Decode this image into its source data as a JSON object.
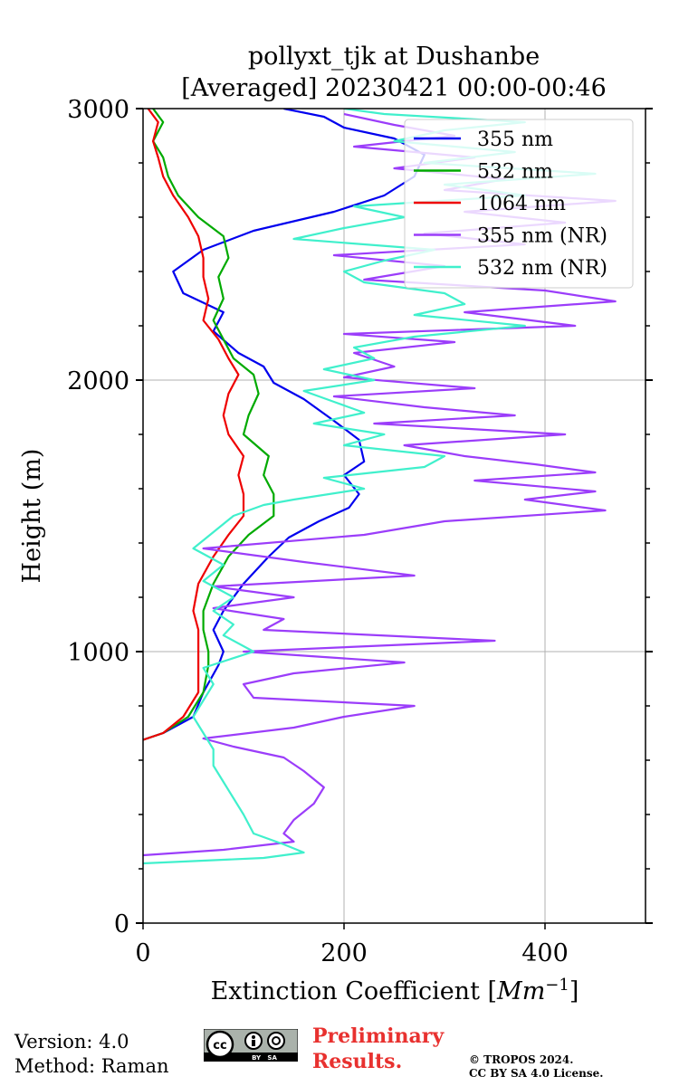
{
  "chart_data": {
    "type": "line",
    "title": "pollyxt_tjk at Dushanbe",
    "subtitle": "[Averaged] 20230421 00:00-00:46",
    "xlabel": "Extinction Coefficient [Mm⁻¹]",
    "ylabel": "Height (m)",
    "xlim": [
      0,
      500
    ],
    "ylim": [
      0,
      3000
    ],
    "xticks": [
      0,
      200,
      400
    ],
    "yticks": [
      0,
      1000,
      2000,
      3000
    ],
    "grid": true,
    "legend_position": "top-right",
    "series": [
      {
        "name": "355 nm",
        "color": "#0000ee",
        "points": [
          [
            0,
            675
          ],
          [
            20,
            700
          ],
          [
            50,
            760
          ],
          [
            60,
            850
          ],
          [
            75,
            950
          ],
          [
            80,
            1000
          ],
          [
            70,
            1080
          ],
          [
            80,
            1150
          ],
          [
            100,
            1250
          ],
          [
            125,
            1350
          ],
          [
            145,
            1420
          ],
          [
            175,
            1480
          ],
          [
            205,
            1530
          ],
          [
            215,
            1580
          ],
          [
            200,
            1650
          ],
          [
            220,
            1700
          ],
          [
            215,
            1780
          ],
          [
            190,
            1850
          ],
          [
            160,
            1930
          ],
          [
            130,
            1990
          ],
          [
            120,
            2050
          ],
          [
            95,
            2100
          ],
          [
            70,
            2180
          ],
          [
            80,
            2250
          ],
          [
            40,
            2320
          ],
          [
            30,
            2400
          ],
          [
            60,
            2480
          ],
          [
            110,
            2550
          ],
          [
            190,
            2620
          ],
          [
            240,
            2680
          ],
          [
            270,
            2750
          ],
          [
            280,
            2830
          ],
          [
            250,
            2890
          ],
          [
            200,
            2930
          ],
          [
            180,
            2970
          ],
          [
            140,
            3000
          ]
        ]
      },
      {
        "name": "532 nm",
        "color": "#00aa00",
        "points": [
          [
            0,
            675
          ],
          [
            20,
            700
          ],
          [
            45,
            760
          ],
          [
            60,
            850
          ],
          [
            65,
            950
          ],
          [
            65,
            1000
          ],
          [
            60,
            1080
          ],
          [
            60,
            1150
          ],
          [
            70,
            1250
          ],
          [
            85,
            1350
          ],
          [
            105,
            1430
          ],
          [
            130,
            1500
          ],
          [
            130,
            1580
          ],
          [
            120,
            1650
          ],
          [
            125,
            1720
          ],
          [
            100,
            1800
          ],
          [
            105,
            1870
          ],
          [
            115,
            1950
          ],
          [
            110,
            2020
          ],
          [
            90,
            2080
          ],
          [
            80,
            2150
          ],
          [
            70,
            2220
          ],
          [
            80,
            2300
          ],
          [
            75,
            2380
          ],
          [
            85,
            2450
          ],
          [
            80,
            2530
          ],
          [
            55,
            2600
          ],
          [
            35,
            2680
          ],
          [
            25,
            2750
          ],
          [
            20,
            2820
          ],
          [
            10,
            2880
          ],
          [
            20,
            2950
          ],
          [
            10,
            3000
          ]
        ]
      },
      {
        "name": "1064 nm",
        "color": "#ee0000",
        "points": [
          [
            0,
            675
          ],
          [
            20,
            700
          ],
          [
            40,
            760
          ],
          [
            55,
            850
          ],
          [
            55,
            950
          ],
          [
            55,
            1000
          ],
          [
            55,
            1080
          ],
          [
            50,
            1150
          ],
          [
            55,
            1250
          ],
          [
            70,
            1350
          ],
          [
            85,
            1430
          ],
          [
            100,
            1500
          ],
          [
            100,
            1580
          ],
          [
            95,
            1650
          ],
          [
            100,
            1720
          ],
          [
            85,
            1800
          ],
          [
            80,
            1870
          ],
          [
            85,
            1950
          ],
          [
            95,
            2020
          ],
          [
            85,
            2080
          ],
          [
            75,
            2150
          ],
          [
            60,
            2220
          ],
          [
            65,
            2300
          ],
          [
            60,
            2380
          ],
          [
            60,
            2450
          ],
          [
            55,
            2530
          ],
          [
            45,
            2600
          ],
          [
            30,
            2680
          ],
          [
            20,
            2750
          ],
          [
            15,
            2820
          ],
          [
            10,
            2880
          ],
          [
            15,
            2950
          ],
          [
            5,
            3000
          ]
        ]
      },
      {
        "name": "355 nm (NR)",
        "color": "#9b3dfa",
        "points": [
          [
            0,
            250
          ],
          [
            80,
            270
          ],
          [
            150,
            300
          ],
          [
            140,
            330
          ],
          [
            150,
            380
          ],
          [
            170,
            440
          ],
          [
            180,
            500
          ],
          [
            160,
            560
          ],
          [
            140,
            610
          ],
          [
            90,
            650
          ],
          [
            60,
            680
          ],
          [
            150,
            720
          ],
          [
            200,
            760
          ],
          [
            270,
            800
          ],
          [
            110,
            830
          ],
          [
            100,
            880
          ],
          [
            150,
            920
          ],
          [
            260,
            960
          ],
          [
            100,
            1000
          ],
          [
            350,
            1040
          ],
          [
            120,
            1080
          ],
          [
            140,
            1120
          ],
          [
            70,
            1160
          ],
          [
            150,
            1200
          ],
          [
            70,
            1240
          ],
          [
            270,
            1280
          ],
          [
            160,
            1330
          ],
          [
            60,
            1380
          ],
          [
            220,
            1430
          ],
          [
            300,
            1480
          ],
          [
            460,
            1520
          ],
          [
            380,
            1560
          ],
          [
            450,
            1590
          ],
          [
            330,
            1630
          ],
          [
            450,
            1660
          ],
          [
            390,
            1690
          ],
          [
            320,
            1720
          ],
          [
            260,
            1760
          ],
          [
            420,
            1800
          ],
          [
            230,
            1840
          ],
          [
            370,
            1870
          ],
          [
            280,
            1900
          ],
          [
            190,
            1940
          ],
          [
            330,
            1970
          ],
          [
            200,
            2010
          ],
          [
            250,
            2050
          ],
          [
            210,
            2100
          ],
          [
            310,
            2140
          ],
          [
            200,
            2170
          ],
          [
            430,
            2200
          ],
          [
            320,
            2250
          ],
          [
            470,
            2290
          ],
          [
            400,
            2330
          ],
          [
            220,
            2370
          ],
          [
            300,
            2420
          ],
          [
            190,
            2460
          ],
          [
            380,
            2500
          ],
          [
            280,
            2540
          ],
          [
            420,
            2580
          ],
          [
            320,
            2620
          ],
          [
            470,
            2660
          ],
          [
            300,
            2700
          ],
          [
            360,
            2740
          ],
          [
            250,
            2780
          ],
          [
            330,
            2820
          ],
          [
            210,
            2860
          ],
          [
            310,
            2900
          ],
          [
            250,
            2940
          ],
          [
            200,
            2980
          ]
        ]
      },
      {
        "name": "532 nm (NR)",
        "color": "#40f0cc",
        "points": [
          [
            0,
            220
          ],
          [
            120,
            240
          ],
          [
            160,
            260
          ],
          [
            140,
            290
          ],
          [
            110,
            330
          ],
          [
            100,
            400
          ],
          [
            90,
            460
          ],
          [
            80,
            520
          ],
          [
            70,
            580
          ],
          [
            70,
            640
          ],
          [
            60,
            700
          ],
          [
            50,
            760
          ],
          [
            60,
            820
          ],
          [
            70,
            880
          ],
          [
            60,
            940
          ],
          [
            110,
            1000
          ],
          [
            80,
            1060
          ],
          [
            90,
            1100
          ],
          [
            70,
            1150
          ],
          [
            90,
            1200
          ],
          [
            60,
            1260
          ],
          [
            80,
            1320
          ],
          [
            50,
            1380
          ],
          [
            70,
            1440
          ],
          [
            90,
            1500
          ],
          [
            120,
            1540
          ],
          [
            150,
            1560
          ],
          [
            220,
            1600
          ],
          [
            180,
            1640
          ],
          [
            280,
            1680
          ],
          [
            300,
            1720
          ],
          [
            200,
            1760
          ],
          [
            240,
            1800
          ],
          [
            170,
            1840
          ],
          [
            220,
            1880
          ],
          [
            190,
            1920
          ],
          [
            160,
            1960
          ],
          [
            230,
            2000
          ],
          [
            180,
            2040
          ],
          [
            230,
            2080
          ],
          [
            210,
            2120
          ],
          [
            270,
            2160
          ],
          [
            380,
            2200
          ],
          [
            270,
            2240
          ],
          [
            320,
            2280
          ],
          [
            300,
            2320
          ],
          [
            220,
            2360
          ],
          [
            200,
            2400
          ],
          [
            240,
            2440
          ],
          [
            290,
            2480
          ],
          [
            150,
            2520
          ],
          [
            200,
            2560
          ],
          [
            260,
            2600
          ],
          [
            210,
            2640
          ],
          [
            380,
            2680
          ],
          [
            300,
            2720
          ],
          [
            450,
            2760
          ],
          [
            280,
            2800
          ],
          [
            370,
            2840
          ],
          [
            250,
            2880
          ],
          [
            300,
            2920
          ],
          [
            380,
            2950
          ],
          [
            240,
            2980
          ],
          [
            200,
            3000
          ]
        ]
      }
    ]
  },
  "footer": {
    "version_line": "Version: 4.0",
    "method_line": "Method: Raman",
    "preliminary_line1": "Preliminary",
    "preliminary_line2": "Results.",
    "copyright_line1": "© TROPOS 2024.",
    "copyright_line2": "CC BY SA 4.0 License.",
    "badge_text": "BY   SA"
  }
}
